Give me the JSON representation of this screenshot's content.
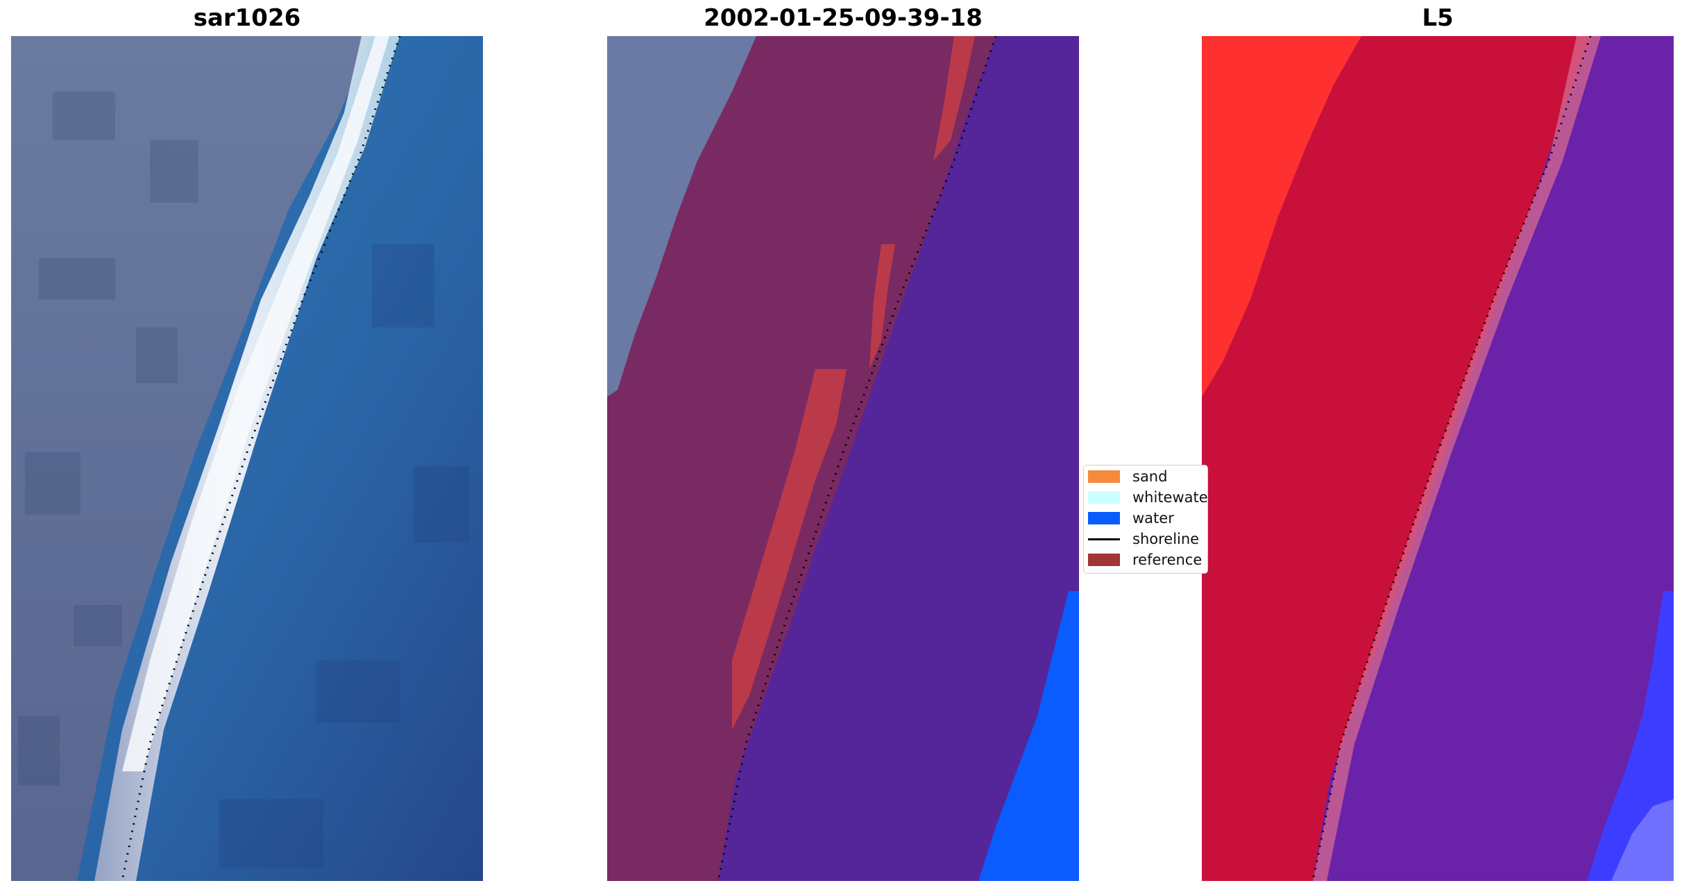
{
  "panels": [
    {
      "title": "sar1026"
    },
    {
      "title": "2002-01-25-09-39-18"
    },
    {
      "title": "L5"
    }
  ],
  "legend": {
    "items": [
      {
        "label": "sand",
        "kind": "patch",
        "color": "#f58a3c"
      },
      {
        "label": "whitewater",
        "kind": "patch",
        "color": "#ccffff"
      },
      {
        "label": "water",
        "kind": "patch",
        "color": "#0a5cff"
      },
      {
        "label": "shoreline",
        "kind": "line",
        "color": "#000000"
      },
      {
        "label": "reference",
        "kind": "patch",
        "color": "#a03535"
      }
    ]
  },
  "colors": {
    "land_rgb": "#5a6a92",
    "sea_rgb": "#2a6aa8",
    "foam_rgb": "#e8eef6",
    "class_land": "#7a2a62",
    "class_sea": "#55259a",
    "class_red": "#bb3a4a",
    "class_water": "#0a5cff",
    "ind_red": "#c8103a",
    "ind_bright": "#ff3030",
    "ind_purple": "#6a22a8",
    "ind_blue": "#3d3dff"
  }
}
